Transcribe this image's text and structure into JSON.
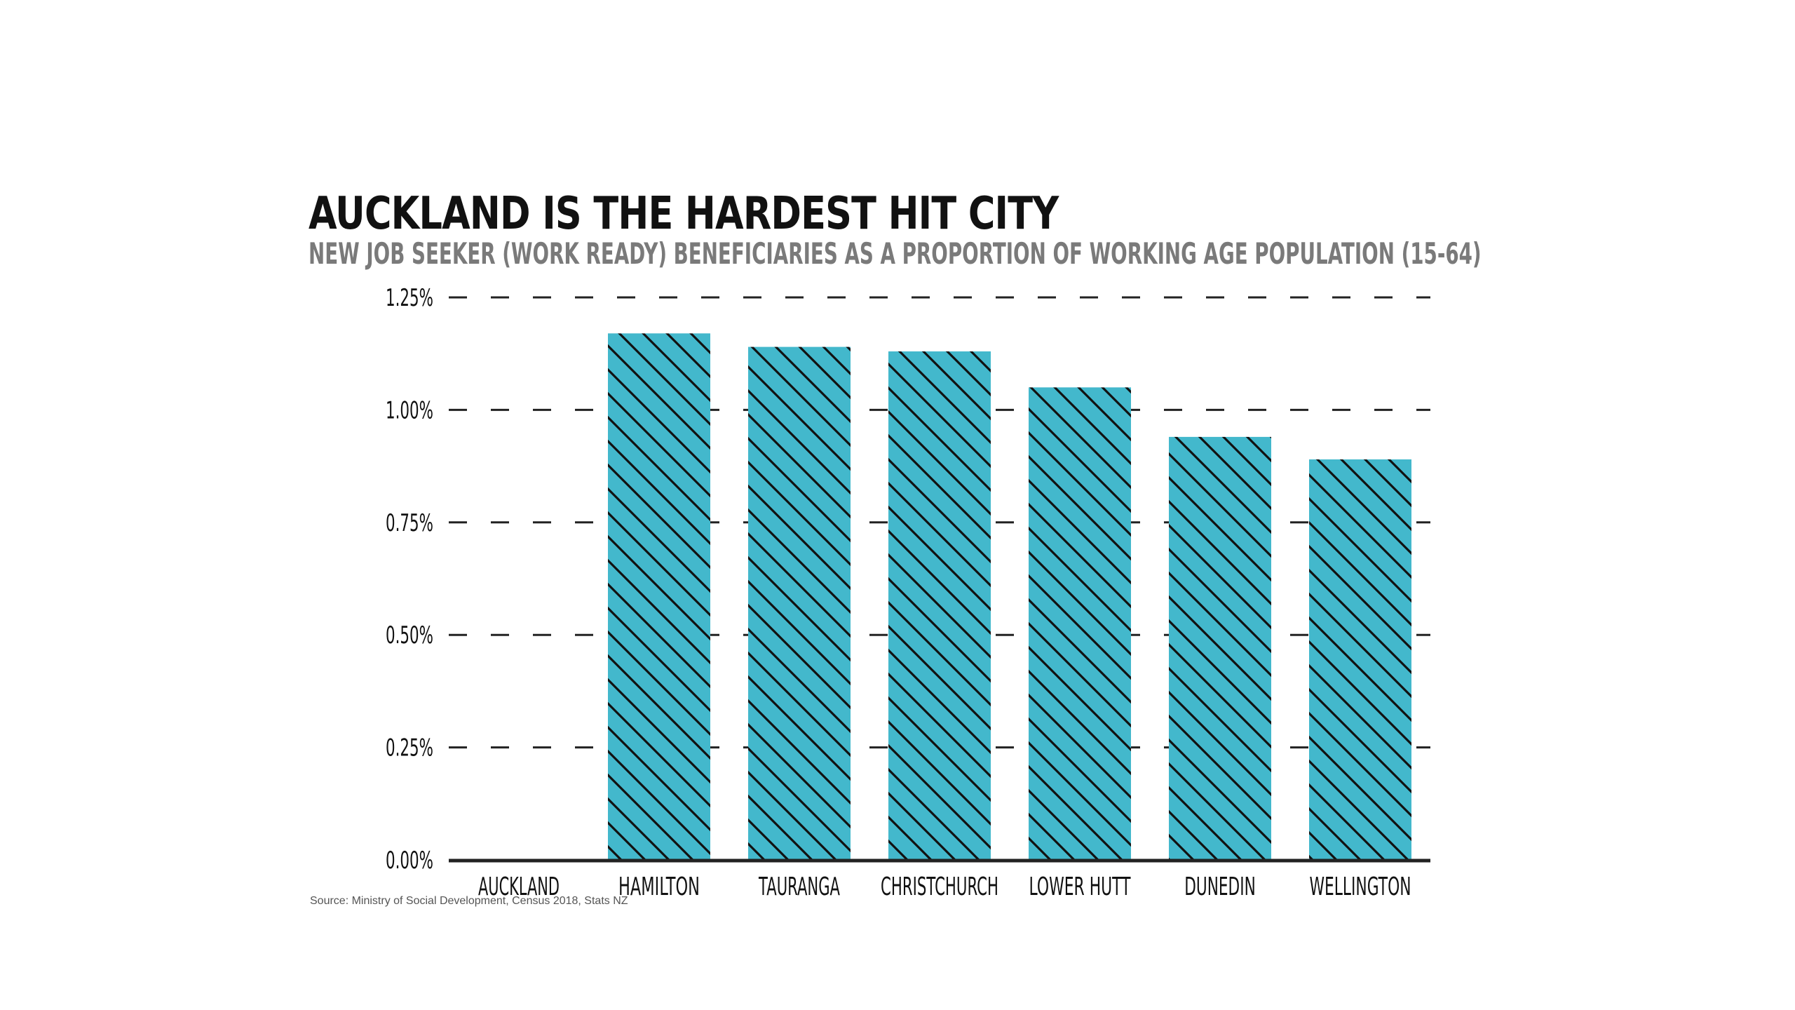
{
  "chart_data": {
    "type": "bar",
    "title": "AUCKLAND IS THE HARDEST HIT CITY",
    "subtitle": "NEW JOB SEEKER (WORK READY) BENEFICIARIES AS A PROPORTION OF WORKING AGE POPULATION (15-64)",
    "source": "Source: Ministry of Social Development, Census 2018, Stats NZ",
    "categories": [
      "AUCKLAND",
      "HAMILTON",
      "TAURANGA",
      "CHRISTCHURCH",
      "LOWER HUTT",
      "DUNEDIN",
      "WELLINGTON"
    ],
    "values": [
      0.0,
      1.17,
      1.14,
      1.13,
      1.05,
      0.94,
      0.89
    ],
    "unit": "%",
    "xlabel": "",
    "ylabel": "",
    "ylim": [
      0,
      1.25
    ],
    "yticks": [
      0.0,
      0.25,
      0.5,
      0.75,
      1.0,
      1.25
    ],
    "ytick_labels": [
      "0.00%",
      "0.25%",
      "0.50%",
      "0.75%",
      "1.00%",
      "1.25%"
    ],
    "grid": true,
    "bar_color": "#43b8cc",
    "hatch_color": "#111111",
    "hatch_pattern": "diagonal",
    "grid_color": "#222222",
    "legend": "none"
  }
}
